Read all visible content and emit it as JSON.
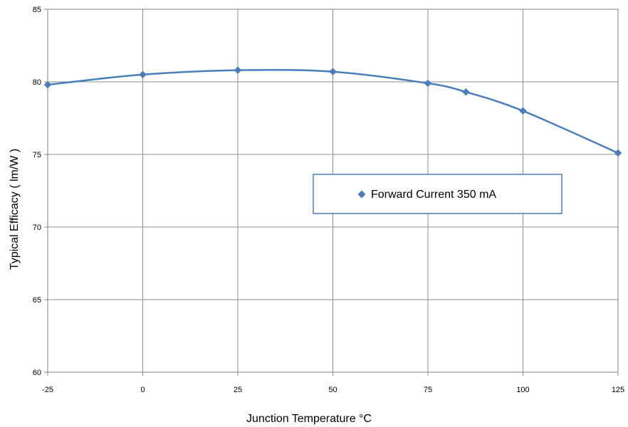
{
  "chart_data": {
    "type": "line",
    "xlabel": "Junction Temperature °C",
    "ylabel": "Typical Efficacy ( lm/W )",
    "x_ticks": [
      "-25",
      "0",
      "25",
      "50",
      "75",
      "100",
      "125"
    ],
    "y_ticks": [
      "60",
      "65",
      "70",
      "75",
      "80",
      "85"
    ],
    "xlim": [
      -25,
      125
    ],
    "ylim": [
      60,
      85
    ],
    "grid": true,
    "legend_position": "center-right",
    "series": [
      {
        "name": "Forward Current 350 mA",
        "color": "#4a7ebb",
        "marker": "diamond",
        "smooth": true,
        "points": [
          {
            "x": -25,
            "y": 79.8
          },
          {
            "x": 0,
            "y": 80.5
          },
          {
            "x": 25,
            "y": 80.8
          },
          {
            "x": 50,
            "y": 80.7
          },
          {
            "x": 75,
            "y": 79.9
          },
          {
            "x": 85,
            "y": 79.3
          },
          {
            "x": 100,
            "y": 78.0
          },
          {
            "x": 125,
            "y": 75.1
          }
        ]
      }
    ]
  }
}
